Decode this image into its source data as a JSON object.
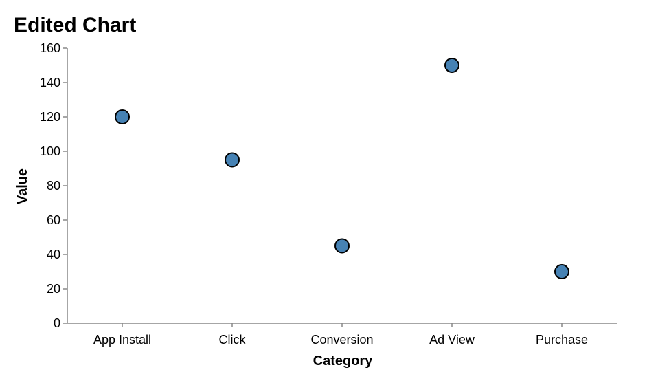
{
  "chart_data": {
    "type": "scatter",
    "title": "Edited Chart",
    "xlabel": "Category",
    "ylabel": "Value",
    "categories": [
      "App Install",
      "Click",
      "Conversion",
      "Ad View",
      "Purchase"
    ],
    "values": [
      120,
      95,
      45,
      150,
      30
    ],
    "ylim": [
      0,
      160
    ],
    "yticks": [
      0,
      20,
      40,
      60,
      80,
      100,
      120,
      140,
      160
    ],
    "grid": false,
    "legend": "none",
    "colors": {
      "point_fill": "#4682b4",
      "point_stroke": "#000000",
      "axis": "#888888",
      "text": "#000000"
    }
  }
}
